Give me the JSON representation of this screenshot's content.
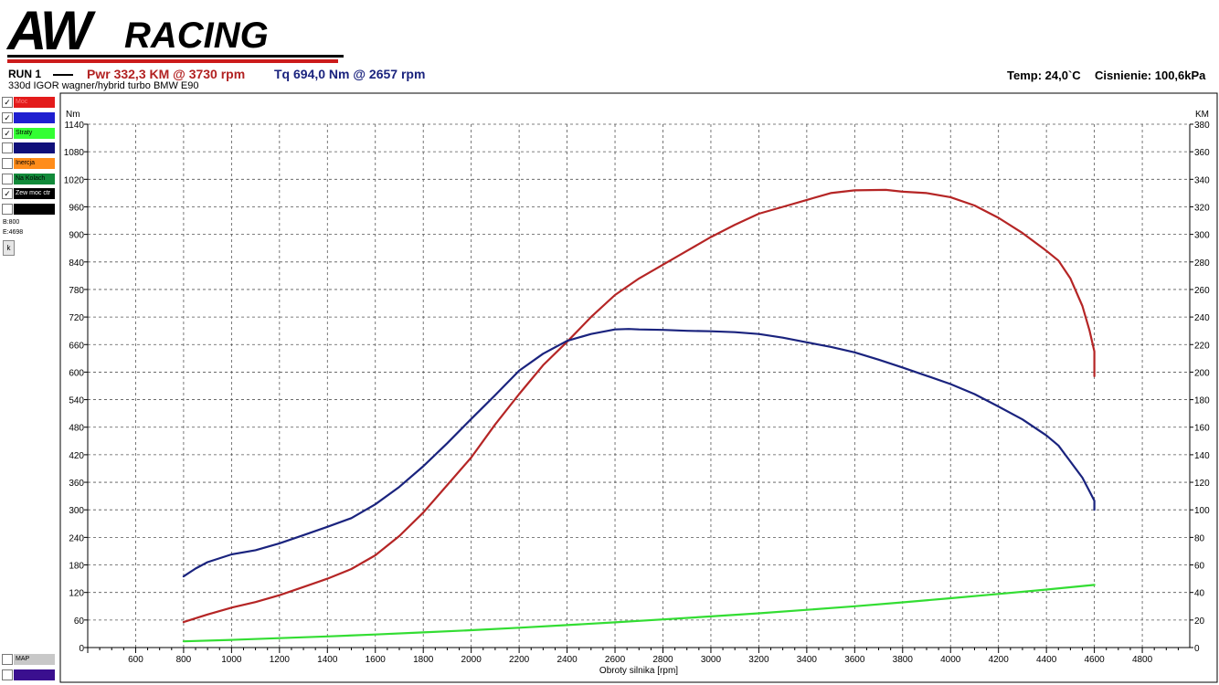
{
  "header": {
    "logo_text": "AWRACING",
    "run_label": "RUN 1",
    "power_summary": "Pwr  332,3 KM @ 3730 rpm",
    "torque_summary": "Tq 694,0 Nm @ 2657 rpm",
    "vehicle_description": "330d  IGOR  wagner/hybrid turbo BMW E90",
    "temperature": "Temp: 24,0`C",
    "pressure": "Cisnienie: 100,6kPa"
  },
  "legend": {
    "items": [
      {
        "label": "Moc",
        "color": "#e31b1b",
        "checked": true,
        "text_color": "#ff7f7f"
      },
      {
        "label": "",
        "color": "#1f1fd0",
        "checked": true,
        "text_color": "#ffffff"
      },
      {
        "label": "Straty",
        "color": "#33ff33",
        "checked": true,
        "text_color": "#000000"
      },
      {
        "label": "",
        "color": "#10107a",
        "checked": false,
        "text_color": "#ffffff"
      },
      {
        "label": "Inercja",
        "color": "#ff8c1a",
        "checked": false,
        "text_color": "#000000"
      },
      {
        "label": "Na Kolach",
        "color": "#128a3a",
        "checked": false,
        "text_color": "#000000"
      },
      {
        "label": "Zew moc ctr",
        "color": "#000000",
        "checked": true,
        "text_color": "#ffffff"
      },
      {
        "label": "",
        "color": "#000000",
        "checked": false,
        "text_color": "#ffffff"
      }
    ],
    "begin_label": "B:800",
    "end_label": "E:4698",
    "k_button": "k",
    "map_label": "MAP",
    "map_color": "#c8c8c8",
    "bottom_color": "#3a0f8f"
  },
  "chart_data": {
    "type": "line",
    "xlabel": "Obroty silnika [rpm]",
    "ylabel_left": "Nm",
    "ylabel_right": "KM",
    "xlim": [
      400,
      4998
    ],
    "x_ticks": [
      600,
      800,
      1000,
      1200,
      1400,
      1600,
      1800,
      2000,
      2200,
      2400,
      2600,
      2800,
      3000,
      3200,
      3400,
      3600,
      3800,
      4000,
      4200,
      4400,
      4600,
      4800
    ],
    "ylim_left": [
      0,
      1140
    ],
    "y_ticks_left": [
      0,
      60,
      120,
      180,
      240,
      300,
      360,
      420,
      480,
      540,
      600,
      660,
      720,
      780,
      840,
      900,
      960,
      1020,
      1080,
      1140
    ],
    "ylim_right": [
      0,
      380
    ],
    "y_ticks_right": [
      0,
      20,
      40,
      60,
      80,
      100,
      120,
      140,
      160,
      180,
      200,
      220,
      240,
      260,
      280,
      300,
      320,
      340,
      360,
      380
    ],
    "grid": true,
    "series": [
      {
        "axis": "right",
        "color": "#b52525",
        "x": [
          800,
          900,
          1000,
          1100,
          1200,
          1300,
          1400,
          1500,
          1600,
          1700,
          1800,
          1900,
          2000,
          2100,
          2200,
          2300,
          2400,
          2500,
          2600,
          2700,
          2800,
          2900,
          3000,
          3100,
          3200,
          3300,
          3400,
          3500,
          3600,
          3730,
          3800,
          3900,
          4000,
          4100,
          4200,
          4300,
          4400,
          4450,
          4500,
          4550,
          4580,
          4600,
          4600
        ],
        "y": [
          18.5,
          24,
          29,
          33,
          38,
          44,
          50,
          57,
          67,
          81,
          98,
          118,
          138,
          162,
          184,
          205,
          222,
          240,
          256,
          268,
          278,
          288,
          298,
          307,
          315,
          320,
          325,
          330,
          332,
          332.3,
          331,
          330,
          327,
          321,
          312,
          301,
          288,
          281,
          268,
          248,
          230,
          215,
          197
        ]
      },
      {
        "axis": "left",
        "color": "#1a237e",
        "x": [
          800,
          850,
          900,
          1000,
          1100,
          1200,
          1300,
          1400,
          1500,
          1600,
          1700,
          1800,
          1900,
          2000,
          2100,
          2200,
          2300,
          2400,
          2500,
          2600,
          2657,
          2700,
          2800,
          2900,
          3000,
          3100,
          3200,
          3300,
          3400,
          3500,
          3600,
          3700,
          3800,
          3900,
          4000,
          4100,
          4200,
          4300,
          4400,
          4450,
          4500,
          4550,
          4580,
          4600,
          4600
        ],
        "y": [
          155,
          172,
          186,
          203,
          212,
          227,
          245,
          263,
          282,
          312,
          350,
          395,
          445,
          498,
          550,
          603,
          640,
          668,
          683,
          693,
          694,
          693,
          692,
          690,
          689,
          687,
          683,
          675,
          665,
          655,
          643,
          627,
          610,
          592,
          574,
          552,
          525,
          497,
          462,
          440,
          405,
          370,
          340,
          320,
          300
        ]
      },
      {
        "axis": "right",
        "color": "#33dd33",
        "x": [
          800,
          1000,
          1200,
          1400,
          1600,
          1800,
          2000,
          2200,
          2400,
          2600,
          2800,
          3000,
          3200,
          3400,
          3600,
          3800,
          4000,
          4200,
          4400,
          4600
        ],
        "y": [
          4.5,
          5.6,
          6.8,
          8.1,
          9.5,
          11,
          12.6,
          14.4,
          16.3,
          18.3,
          20.4,
          22.6,
          24.9,
          27.4,
          30,
          32.8,
          35.8,
          38.9,
          42.1,
          45.5
        ]
      }
    ]
  }
}
